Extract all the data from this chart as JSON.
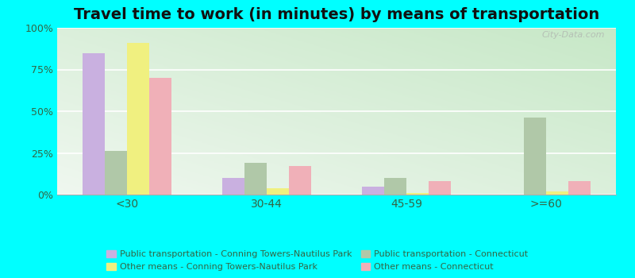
{
  "title": "Travel time to work (in minutes) by means of transportation",
  "categories": [
    "<30",
    "30-44",
    "45-59",
    ">=60"
  ],
  "series": {
    "pub_trans_cnp": [
      85,
      10,
      5,
      0
    ],
    "pub_trans_ct": [
      26,
      19,
      10,
      46
    ],
    "other_cnp": [
      91,
      4,
      1,
      2
    ],
    "other_ct": [
      70,
      17,
      8,
      8
    ]
  },
  "colors": {
    "pub_trans_cnp": "#c9b0e0",
    "pub_trans_ct": "#b0c8a8",
    "other_cnp": "#f0f080",
    "other_ct": "#f0b0b8"
  },
  "legend_labels": {
    "pub_trans_cnp": "Public transportation - Conning Towers-Nautilus Park",
    "pub_trans_ct": "Public transportation - Connecticut",
    "other_cnp": "Other means - Conning Towers-Nautilus Park",
    "other_ct": "Other means - Connecticut"
  },
  "ylim": [
    0,
    100
  ],
  "yticks": [
    0,
    25,
    50,
    75,
    100
  ],
  "ytick_labels": [
    "0%",
    "25%",
    "50%",
    "75%",
    "100%"
  ],
  "outer_background": "#00ffff",
  "bar_width": 0.16,
  "title_fontsize": 14,
  "tick_label_color": "#336644"
}
